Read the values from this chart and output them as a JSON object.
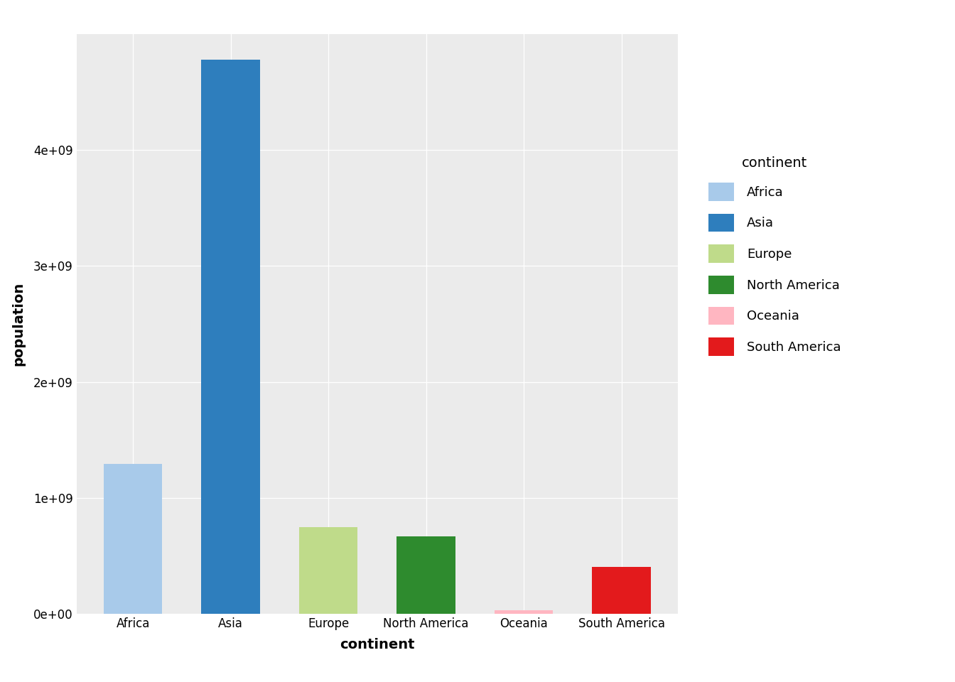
{
  "categories": [
    "Africa",
    "Asia",
    "Europe",
    "North America",
    "Oceania",
    "South America"
  ],
  "values": [
    1290000000.0,
    4780000000.0,
    749000000.0,
    669000000.0,
    33500000.0,
    404000000.0
  ],
  "bar_colors": [
    "#A8CAEA",
    "#2E7EBD",
    "#BFDB8A",
    "#2E8B2E",
    "#FFB6C1",
    "#E31A1C"
  ],
  "legend_colors": [
    "#A8CAEA",
    "#2E7EBD",
    "#BFDB8A",
    "#2E8B2E",
    "#FFB6C1",
    "#E31A1C"
  ],
  "legend_labels": [
    "Africa",
    "Asia",
    "Europe",
    "North America",
    "Oceania",
    "South America"
  ],
  "legend_title": "continent",
  "xlabel": "continent",
  "ylabel": "population",
  "ylim": [
    0,
    5000000000.0
  ],
  "yticks": [
    0,
    1000000000.0,
    2000000000.0,
    3000000000.0,
    4000000000.0
  ],
  "ytick_labels": [
    "0e+00",
    "1e+09",
    "2e+09",
    "3e+09",
    "4e+09"
  ],
  "plot_bg_color": "#EBEBEB",
  "fig_bg_color": "#FFFFFF",
  "grid_color": "#FFFFFF",
  "axis_label_fontsize": 14,
  "tick_fontsize": 12,
  "legend_title_fontsize": 14,
  "legend_fontsize": 13
}
